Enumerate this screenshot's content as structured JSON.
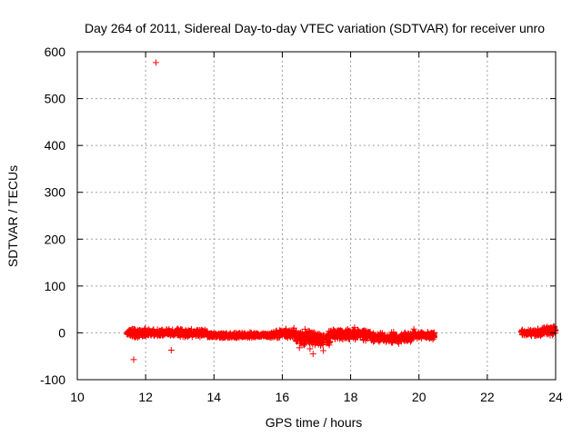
{
  "chart_data": {
    "type": "scatter",
    "title": "Day 264 of 2011, Sidereal Day-to-day VTEC variation (SDTVAR) for receiver unro",
    "xlabel": "GPS time / hours",
    "ylabel": "SDTVAR / TECUs",
    "xlim": [
      10,
      24
    ],
    "ylim": [
      -100,
      600
    ],
    "xticks": [
      10,
      12,
      14,
      16,
      18,
      20,
      22,
      24
    ],
    "yticks": [
      -100,
      0,
      100,
      200,
      300,
      400,
      500,
      600
    ],
    "grid": true,
    "legend": "none",
    "marker": "plus",
    "color": "#ff0000",
    "series": [
      {
        "segments": [
          {
            "x_range": [
              11.45,
              12.0
            ],
            "baseline": 0,
            "spread": 8
          },
          {
            "x_range": [
              12.0,
              13.8
            ],
            "baseline": 0,
            "spread": 6
          },
          {
            "x_range": [
              13.8,
              15.8
            ],
            "baseline": -5,
            "spread": 4
          },
          {
            "x_range": [
              15.8,
              16.4
            ],
            "baseline": -2,
            "spread": 7
          },
          {
            "x_range": [
              16.4,
              17.4
            ],
            "baseline": -12,
            "spread": 12
          },
          {
            "x_range": [
              17.4,
              18.6
            ],
            "baseline": -3,
            "spread": 9
          },
          {
            "x_range": [
              18.6,
              19.8
            ],
            "baseline": -10,
            "spread": 8
          },
          {
            "x_range": [
              19.8,
              20.45
            ],
            "baseline": -5,
            "spread": 5
          },
          {
            "x_range": [
              23.0,
              23.6
            ],
            "baseline": 0,
            "spread": 5
          },
          {
            "x_range": [
              23.6,
              24.0
            ],
            "baseline": 5,
            "spread": 7
          }
        ],
        "outliers": [
          {
            "x": 12.3,
            "y": 577
          },
          {
            "x": 11.65,
            "y": -57
          },
          {
            "x": 12.75,
            "y": -37
          },
          {
            "x": 16.9,
            "y": -45
          },
          {
            "x": 17.2,
            "y": -38
          },
          {
            "x": 16.5,
            "y": -32
          },
          {
            "x": 19.85,
            "y": 8
          }
        ]
      }
    ]
  }
}
